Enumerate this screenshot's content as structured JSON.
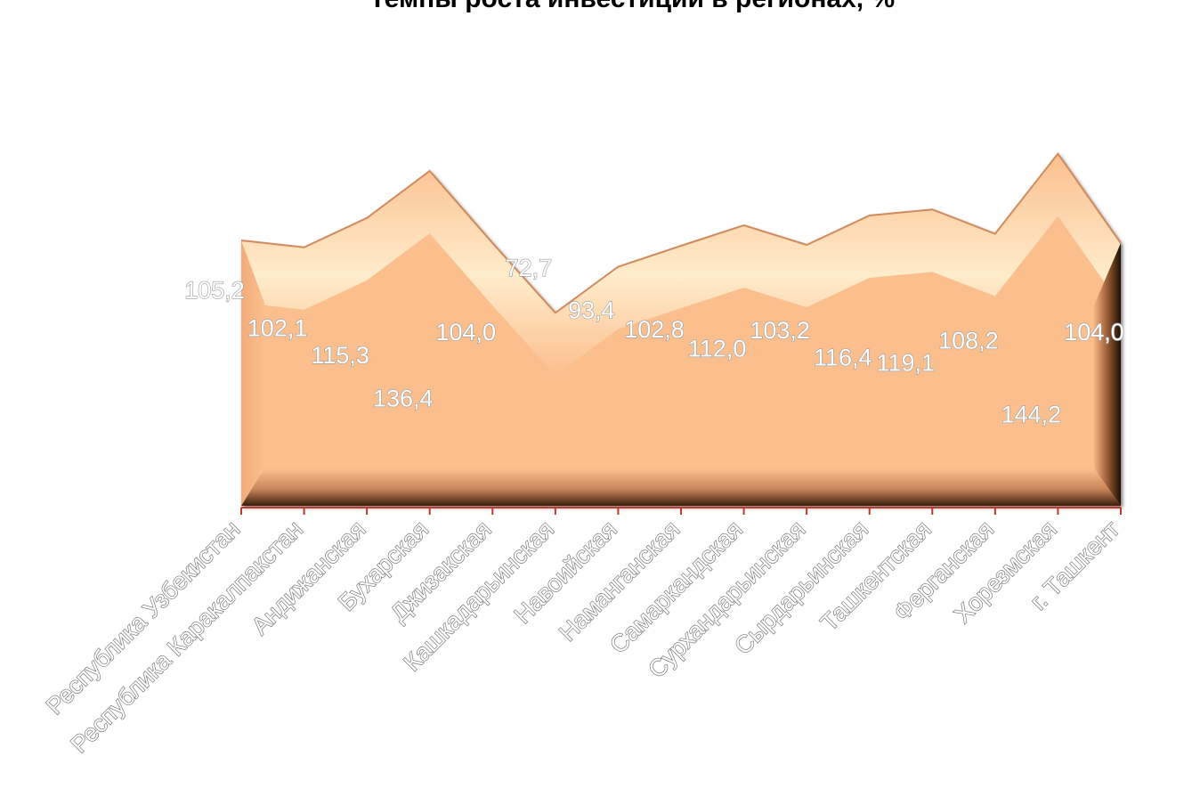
{
  "chart_data": {
    "type": "area",
    "title": "Темпы роста инвестиций в регионах, %",
    "categories": [
      "Республика Узбекистан",
      "Республика Каракалпакстан",
      "Андижанская",
      "Бухарская",
      "Джизакская",
      "Кашкадарьинская",
      "Навоийская",
      "Наманганская",
      "Самаркандская",
      "Сурхандарьинская",
      "Сырдарьинская",
      "Ташкентская",
      "Ферганская",
      "Хорезмская",
      "г. Ташкент"
    ],
    "value_labels": [
      "105,2",
      "102,1",
      "115,3",
      "136,4",
      "104,0",
      "72,7",
      "93,4",
      "102,8",
      "112,0",
      "103,2",
      "116,4",
      "119,1",
      "108,2",
      "144,2",
      "104,0"
    ],
    "values": [
      105.2,
      102.1,
      115.3,
      136.4,
      104.0,
      72.7,
      93.4,
      102.8,
      112.0,
      103.2,
      116.4,
      119.1,
      108.2,
      144.2,
      104.0
    ],
    "ylim": [
      0,
      150
    ],
    "grid": false,
    "legend": "none",
    "colors": {
      "fill": "#fbbf8e",
      "highlight": "#fff3d2",
      "shadow": "#2a1608",
      "axis": "#c0392b"
    }
  }
}
